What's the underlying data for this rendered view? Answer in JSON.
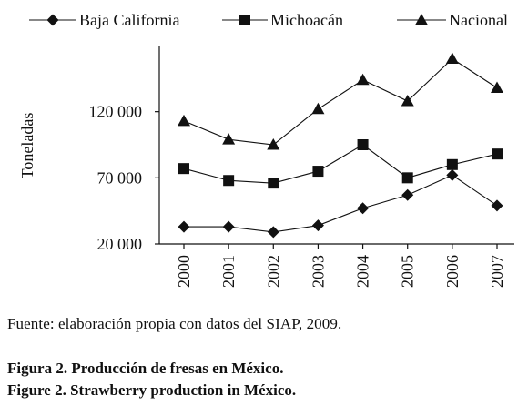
{
  "chart_data": {
    "type": "line",
    "categories": [
      "2000",
      "2001",
      "2002",
      "2003",
      "2004",
      "2005",
      "2006",
      "2007"
    ],
    "series": [
      {
        "name": "Baja California",
        "marker": "diamond",
        "values": [
          33000,
          33000,
          29000,
          34000,
          47000,
          57000,
          72000,
          49000
        ]
      },
      {
        "name": "Michoacán",
        "marker": "square",
        "values": [
          77000,
          68000,
          66000,
          75000,
          95000,
          70000,
          80000,
          88000
        ]
      },
      {
        "name": "Nacional",
        "marker": "triangle",
        "values": [
          113000,
          99000,
          95000,
          122000,
          144000,
          128000,
          160000,
          138000
        ]
      }
    ],
    "ylabel": "Toneladas",
    "yticks": [
      20000,
      70000,
      120000
    ],
    "ytick_labels": [
      "20 000",
      "70 000",
      "120 000"
    ],
    "ylim": [
      20000,
      170000
    ],
    "legend_position": "top",
    "grid": false,
    "color": "#111111"
  },
  "source_note": "Fuente: elaboración propia con datos del SIAP, 2009.",
  "caption_es": "Figura 2. Producción de fresas en México.",
  "caption_en": "Figure 2. Strawberry production in México."
}
